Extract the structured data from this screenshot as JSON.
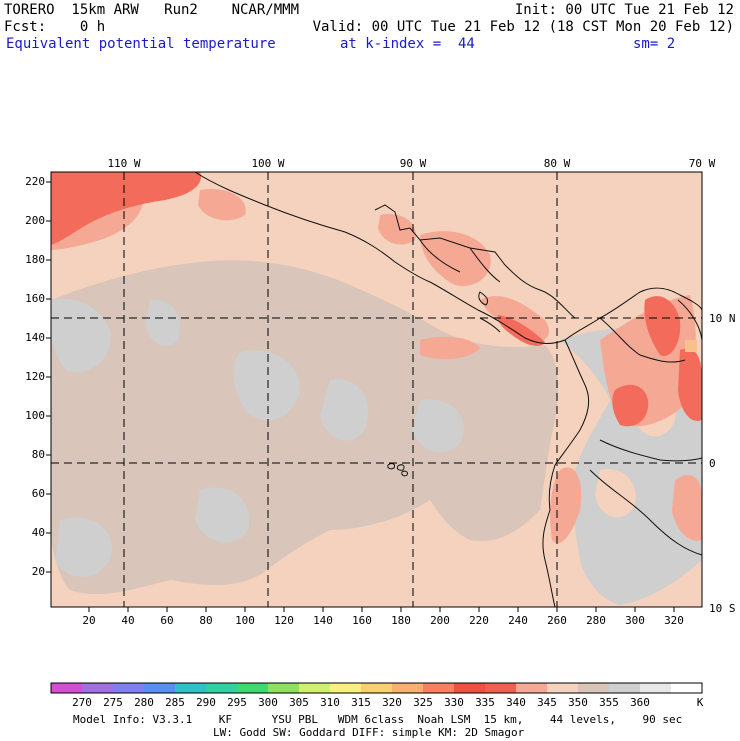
{
  "header": {
    "line1_left": "TORERO  15km ARW   Run2    NCAR/MMM",
    "line1_right": "Init: 00 UTC Tue 21 Feb 12",
    "line2_left": "Fcst:    0 h",
    "line2_right": "Valid: 00 UTC Tue 21 Feb 12 (18 CST Mon 20 Feb 12)",
    "field": "Equivalent potential temperature",
    "level": "at k-index =  44",
    "smooth": "sm= 2"
  },
  "map": {
    "top_lon_labels": [
      "110 W",
      "100 W",
      "90 W",
      "80 W",
      "70 W"
    ],
    "right_lat_labels": [
      "10 N",
      "0",
      "10 S"
    ],
    "left_ticks": [
      "220",
      "200",
      "180",
      "160",
      "140",
      "120",
      "100",
      "80",
      "60",
      "40",
      "20"
    ],
    "bottom_ticks": [
      "20",
      "40",
      "60",
      "80",
      "100",
      "120",
      "140",
      "160",
      "180",
      "200",
      "220",
      "240",
      "260",
      "280",
      "300",
      "320"
    ],
    "colors": {
      "k340": "#f4d2bd",
      "k345": "#d9c5ba",
      "k350": "#cfcfcf",
      "k335": "#f5a894",
      "k330": "#f36b5a",
      "k325": "#f58c6c",
      "k320": "#f8c08a"
    }
  },
  "colorbar": {
    "labels": [
      "270",
      "275",
      "280",
      "285",
      "290",
      "295",
      "300",
      "305",
      "310",
      "315",
      "320",
      "325",
      "330",
      "335",
      "340",
      "345",
      "350",
      "355",
      "360"
    ],
    "unit": "K",
    "colors": [
      "#d050d0",
      "#a070e0",
      "#8080f0",
      "#5a8ef0",
      "#30c0c8",
      "#30d0a0",
      "#40d870",
      "#90e060",
      "#d0f070",
      "#f8f080",
      "#f8d070",
      "#f8b070",
      "#f88060",
      "#f05040",
      "#f06050",
      "#f5a894",
      "#f4d2bd",
      "#d9c5ba",
      "#cfcfcf",
      "#e8e8e8",
      "#ffffff"
    ]
  },
  "footer": {
    "line1": "Model Info: V3.3.1    KF      YSU PBL   WDM 6class  Noah LSM  15 km,    44 levels,    90 sec",
    "line2": "LW: Godd SW: Goddard DIFF: simple KM: 2D Smagor"
  }
}
